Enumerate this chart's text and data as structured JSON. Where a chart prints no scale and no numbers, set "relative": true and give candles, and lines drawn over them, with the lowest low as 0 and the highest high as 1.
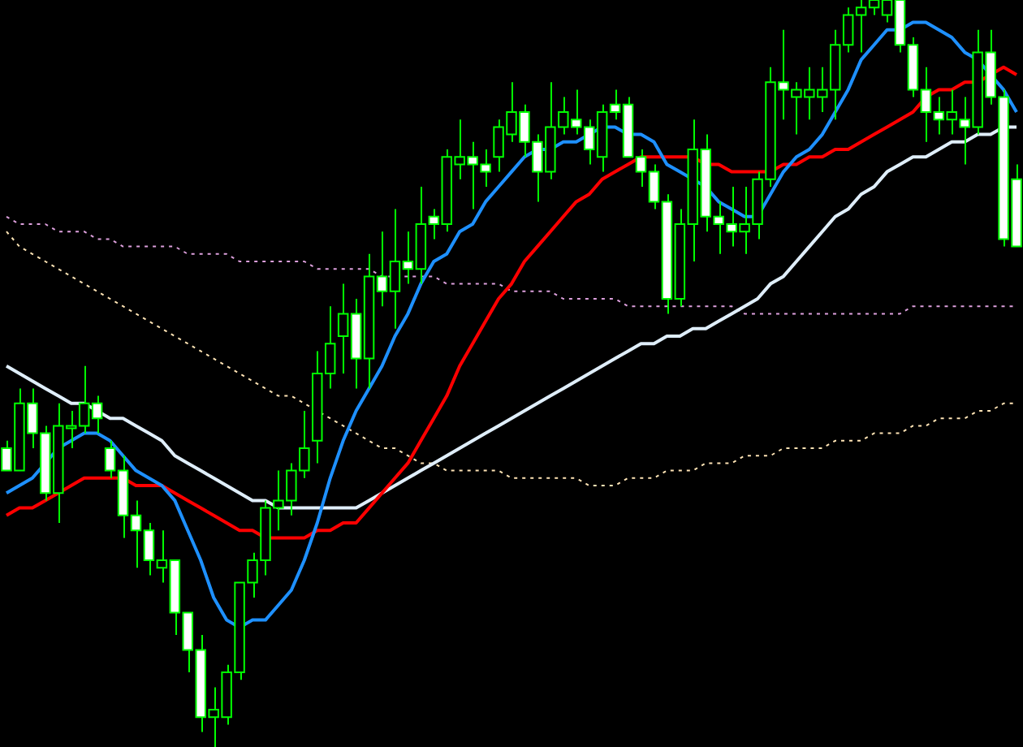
{
  "chart_data": {
    "type": "candlestick",
    "relative": true,
    "categories": [
      null,
      null,
      null,
      null,
      null,
      null,
      null,
      null,
      null,
      null,
      null,
      null,
      null,
      null,
      null,
      null,
      null,
      null,
      null,
      null,
      null,
      null,
      null,
      null,
      null,
      null,
      null,
      null,
      null,
      null,
      null,
      null,
      null,
      null,
      null,
      null,
      null,
      null,
      null,
      null,
      null,
      null,
      null,
      null,
      null,
      null,
      null,
      null,
      null,
      null,
      null,
      null,
      null,
      null,
      null,
      null,
      null,
      null,
      null,
      null,
      null,
      null,
      null,
      null,
      null,
      null,
      null,
      null,
      null,
      null,
      null,
      null,
      null,
      null,
      null,
      null,
      null,
      null,
      null
    ],
    "ohlc": [
      [
        0.4,
        0.41,
        0.37,
        0.37
      ],
      [
        0.37,
        0.48,
        0.37,
        0.46
      ],
      [
        0.46,
        0.48,
        0.4,
        0.42
      ],
      [
        0.42,
        0.43,
        0.33,
        0.34
      ],
      [
        0.34,
        0.46,
        0.3,
        0.43
      ],
      [
        0.43,
        0.45,
        0.4,
        0.43
      ],
      [
        0.43,
        0.51,
        0.42,
        0.46
      ],
      [
        0.46,
        0.47,
        0.42,
        0.44
      ],
      [
        0.4,
        0.41,
        0.36,
        0.37
      ],
      [
        0.37,
        0.39,
        0.28,
        0.31
      ],
      [
        0.31,
        0.33,
        0.24,
        0.29
      ],
      [
        0.29,
        0.3,
        0.23,
        0.25
      ],
      [
        0.24,
        0.29,
        0.22,
        0.25
      ],
      [
        0.25,
        0.25,
        0.15,
        0.18
      ],
      [
        0.18,
        0.18,
        0.1,
        0.13
      ],
      [
        0.13,
        0.15,
        0.02,
        0.04
      ],
      [
        0.04,
        0.08,
        0,
        0.05
      ],
      [
        0.04,
        0.11,
        0.03,
        0.1
      ],
      [
        0.1,
        0.22,
        0.09,
        0.22
      ],
      [
        0.22,
        0.26,
        0.2,
        0.25
      ],
      [
        0.25,
        0.33,
        0.23,
        0.32
      ],
      [
        0.32,
        0.37,
        0.29,
        0.33
      ],
      [
        0.33,
        0.38,
        0.31,
        0.37
      ],
      [
        0.37,
        0.45,
        0.36,
        0.4
      ],
      [
        0.41,
        0.53,
        0.38,
        0.5
      ],
      [
        0.5,
        0.59,
        0.48,
        0.54
      ],
      [
        0.55,
        0.62,
        0.5,
        0.58
      ],
      [
        0.58,
        0.6,
        0.48,
        0.52
      ],
      [
        0.52,
        0.66,
        0.48,
        0.63
      ],
      [
        0.63,
        0.69,
        0.59,
        0.61
      ],
      [
        0.61,
        0.72,
        0.56,
        0.65
      ],
      [
        0.65,
        0.69,
        0.62,
        0.64
      ],
      [
        0.64,
        0.75,
        0.62,
        0.7
      ],
      [
        0.71,
        0.72,
        0.68,
        0.7
      ],
      [
        0.7,
        0.8,
        0.69,
        0.79
      ],
      [
        0.78,
        0.84,
        0.76,
        0.79
      ],
      [
        0.79,
        0.81,
        0.72,
        0.78
      ],
      [
        0.78,
        0.8,
        0.75,
        0.77
      ],
      [
        0.79,
        0.84,
        0.77,
        0.83
      ],
      [
        0.82,
        0.89,
        0.81,
        0.85
      ],
      [
        0.85,
        0.86,
        0.79,
        0.81
      ],
      [
        0.81,
        0.82,
        0.73,
        0.77
      ],
      [
        0.77,
        0.89,
        0.76,
        0.83
      ],
      [
        0.83,
        0.87,
        0.82,
        0.85
      ],
      [
        0.84,
        0.88,
        0.82,
        0.83
      ],
      [
        0.83,
        0.84,
        0.78,
        0.8
      ],
      [
        0.79,
        0.86,
        0.77,
        0.85
      ],
      [
        0.86,
        0.88,
        0.84,
        0.85
      ],
      [
        0.86,
        0.87,
        0.79,
        0.79
      ],
      [
        0.79,
        0.8,
        0.75,
        0.77
      ],
      [
        0.77,
        0.78,
        0.72,
        0.73
      ],
      [
        0.73,
        0.74,
        0.58,
        0.6
      ],
      [
        0.6,
        0.72,
        0.59,
        0.7
      ],
      [
        0.7,
        0.84,
        0.65,
        0.8
      ],
      [
        0.8,
        0.82,
        0.69,
        0.71
      ],
      [
        0.71,
        0.73,
        0.66,
        0.7
      ],
      [
        0.7,
        0.75,
        0.67,
        0.69
      ],
      [
        0.69,
        0.75,
        0.66,
        0.7
      ],
      [
        0.7,
        0.77,
        0.68,
        0.76
      ],
      [
        0.76,
        0.91,
        0.75,
        0.89
      ],
      [
        0.89,
        0.96,
        0.84,
        0.88
      ],
      [
        0.87,
        0.89,
        0.82,
        0.88
      ],
      [
        0.87,
        0.91,
        0.84,
        0.88
      ],
      [
        0.87,
        0.91,
        0.85,
        0.88
      ],
      [
        0.88,
        0.96,
        0.84,
        0.94
      ],
      [
        0.94,
        0.99,
        0.93,
        0.98
      ],
      [
        0.98,
        1,
        0.93,
        0.99
      ],
      [
        0.99,
        1,
        0.98,
        1
      ],
      [
        0.98,
        1,
        0.97,
        1
      ],
      [
        1,
        1,
        0.93,
        0.94
      ],
      [
        0.94,
        0.95,
        0.87,
        0.88
      ],
      [
        0.88,
        0.91,
        0.81,
        0.85
      ],
      [
        0.85,
        0.87,
        0.82,
        0.84
      ],
      [
        0.84,
        0.88,
        0.82,
        0.85
      ],
      [
        0.84,
        0.87,
        0.78,
        0.83
      ],
      [
        0.83,
        0.96,
        0.82,
        0.93
      ],
      [
        0.93,
        0.96,
        0.86,
        0.87
      ],
      [
        0.87,
        0.88,
        0.67,
        0.68
      ],
      [
        0.76,
        0.78,
        0.67,
        0.67
      ]
    ],
    "series": [
      {
        "type": "line",
        "color": "#1e90ff",
        "line_style": "solid",
        "values": [
          0.34,
          0.35,
          0.36,
          0.38,
          0.4,
          0.41,
          0.42,
          0.42,
          0.41,
          0.39,
          0.37,
          0.36,
          0.35,
          0.33,
          0.29,
          0.25,
          0.2,
          0.17,
          0.16,
          0.17,
          0.17,
          0.19,
          0.21,
          0.25,
          0.3,
          0.36,
          0.41,
          0.45,
          0.48,
          0.51,
          0.55,
          0.58,
          0.62,
          0.65,
          0.66,
          0.69,
          0.7,
          0.73,
          0.75,
          0.77,
          0.79,
          0.8,
          0.8,
          0.81,
          0.81,
          0.82,
          0.83,
          0.83,
          0.82,
          0.82,
          0.81,
          0.78,
          0.77,
          0.76,
          0.75,
          0.73,
          0.72,
          0.71,
          0.71,
          0.74,
          0.77,
          0.79,
          0.8,
          0.82,
          0.85,
          0.88,
          0.92,
          0.94,
          0.96,
          0.96,
          0.97,
          0.97,
          0.96,
          0.95,
          0.93,
          0.92,
          0.9,
          0.88,
          0.85
        ]
      },
      {
        "type": "line",
        "color": "#ff0000",
        "line_style": "solid",
        "values": [
          0.31,
          0.32,
          0.32,
          0.33,
          0.34,
          0.35,
          0.36,
          0.36,
          0.36,
          0.36,
          0.35,
          0.35,
          0.35,
          0.34,
          0.33,
          0.32,
          0.31,
          0.3,
          0.29,
          0.29,
          0.28,
          0.28,
          0.28,
          0.28,
          0.29,
          0.29,
          0.3,
          0.3,
          0.32,
          0.34,
          0.36,
          0.38,
          0.41,
          0.44,
          0.47,
          0.51,
          0.54,
          0.57,
          0.6,
          0.62,
          0.65,
          0.67,
          0.69,
          0.71,
          0.73,
          0.74,
          0.76,
          0.77,
          0.78,
          0.79,
          0.79,
          0.79,
          0.79,
          0.79,
          0.78,
          0.78,
          0.77,
          0.77,
          0.77,
          0.77,
          0.78,
          0.78,
          0.79,
          0.79,
          0.8,
          0.8,
          0.81,
          0.82,
          0.83,
          0.84,
          0.85,
          0.87,
          0.88,
          0.88,
          0.89,
          0.89,
          0.9,
          0.91,
          0.9
        ]
      },
      {
        "type": "line",
        "color": "#dfeefa",
        "line_style": "solid",
        "values": [
          0.51,
          0.5,
          0.49,
          0.48,
          0.47,
          0.46,
          0.46,
          0.45,
          0.44,
          0.44,
          0.43,
          0.42,
          0.41,
          0.39,
          0.38,
          0.37,
          0.36,
          0.35,
          0.34,
          0.33,
          0.33,
          0.32,
          0.32,
          0.32,
          0.32,
          0.32,
          0.32,
          0.32,
          0.33,
          0.34,
          0.35,
          0.36,
          0.37,
          0.38,
          0.39,
          0.4,
          0.41,
          0.42,
          0.43,
          0.44,
          0.45,
          0.46,
          0.47,
          0.48,
          0.49,
          0.5,
          0.51,
          0.52,
          0.53,
          0.54,
          0.54,
          0.55,
          0.55,
          0.56,
          0.56,
          0.57,
          0.58,
          0.59,
          0.6,
          0.62,
          0.63,
          0.65,
          0.67,
          0.69,
          0.71,
          0.72,
          0.74,
          0.75,
          0.77,
          0.78,
          0.79,
          0.79,
          0.8,
          0.81,
          0.81,
          0.82,
          0.82,
          0.83,
          0.83
        ]
      },
      {
        "type": "line",
        "color": "#dda0dd",
        "line_style": "dotted",
        "values": [
          0.71,
          0.7,
          0.7,
          0.7,
          0.69,
          0.69,
          0.69,
          0.68,
          0.68,
          0.67,
          0.67,
          0.67,
          0.67,
          0.67,
          0.66,
          0.66,
          0.66,
          0.66,
          0.65,
          0.65,
          0.65,
          0.65,
          0.65,
          0.65,
          0.64,
          0.64,
          0.64,
          0.64,
          0.64,
          0.63,
          0.63,
          0.63,
          0.63,
          0.63,
          0.62,
          0.62,
          0.62,
          0.62,
          0.62,
          0.61,
          0.61,
          0.61,
          0.61,
          0.6,
          0.6,
          0.6,
          0.6,
          0.6,
          0.59,
          0.59,
          0.59,
          0.59,
          0.59,
          0.59,
          0.59,
          0.59,
          0.59,
          0.58,
          0.58,
          0.58,
          0.58,
          0.58,
          0.58,
          0.58,
          0.58,
          0.58,
          0.58,
          0.58,
          0.58,
          0.58,
          0.59,
          0.59,
          0.59,
          0.59,
          0.59,
          0.59,
          0.59,
          0.59,
          0.59
        ]
      },
      {
        "type": "line",
        "color": "#ffe4b5",
        "line_style": "dotted",
        "values": [
          0.69,
          0.67,
          0.66,
          0.65,
          0.64,
          0.63,
          0.62,
          0.61,
          0.6,
          0.59,
          0.58,
          0.57,
          0.56,
          0.55,
          0.54,
          0.53,
          0.52,
          0.51,
          0.5,
          0.49,
          0.48,
          0.47,
          0.47,
          0.46,
          0.45,
          0.44,
          0.43,
          0.42,
          0.41,
          0.4,
          0.4,
          0.39,
          0.38,
          0.38,
          0.37,
          0.37,
          0.37,
          0.37,
          0.37,
          0.36,
          0.36,
          0.36,
          0.36,
          0.36,
          0.36,
          0.35,
          0.35,
          0.35,
          0.36,
          0.36,
          0.36,
          0.37,
          0.37,
          0.37,
          0.38,
          0.38,
          0.38,
          0.39,
          0.39,
          0.39,
          0.4,
          0.4,
          0.4,
          0.4,
          0.41,
          0.41,
          0.41,
          0.42,
          0.42,
          0.42,
          0.43,
          0.43,
          0.44,
          0.44,
          0.44,
          0.45,
          0.45,
          0.46,
          0.46
        ]
      }
    ]
  }
}
